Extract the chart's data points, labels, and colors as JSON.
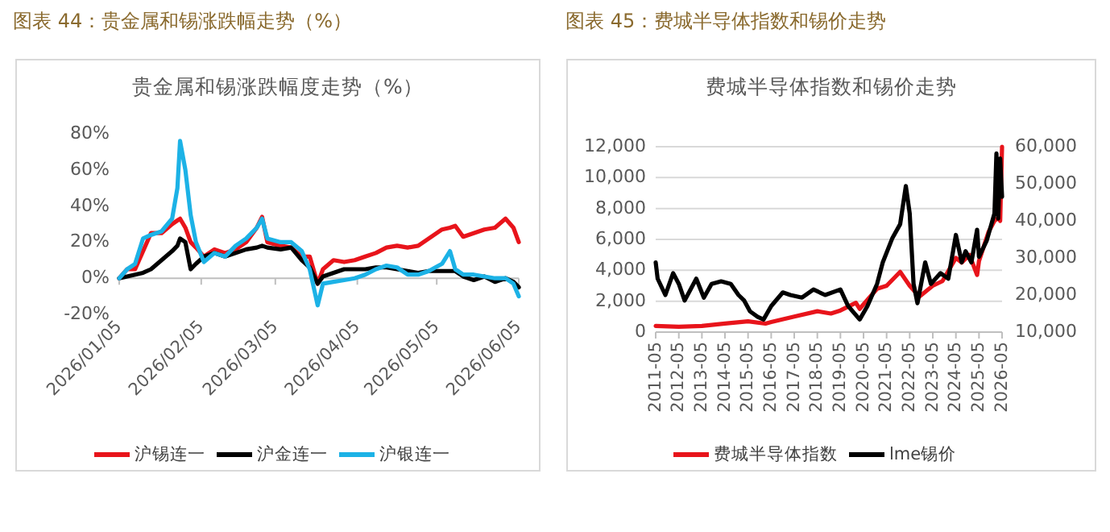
{
  "chart_data": [
    {
      "type": "line",
      "title": "图表 44：贵金属和锡涨跌幅走势（%）",
      "subtitle": "贵金属和锡涨跌幅度走势（%）",
      "x": [
        "2026-01-05",
        "2026-01-08",
        "2026-01-11",
        "2026-01-14",
        "2026-01-17",
        "2026-01-21",
        "2026-01-25",
        "2026-01-27",
        "2026-01-28",
        "2026-01-30",
        "2026-02-01",
        "2026-02-03",
        "2026-02-06",
        "2026-02-10",
        "2026-02-14",
        "2026-02-18",
        "2026-02-22",
        "2026-02-26",
        "2026-02-28",
        "2026-03-02",
        "2026-03-07",
        "2026-03-11",
        "2026-03-15",
        "2026-03-18",
        "2026-03-21",
        "2026-03-23",
        "2026-03-27",
        "2026-03-31",
        "2026-04-04",
        "2026-04-08",
        "2026-04-12",
        "2026-04-16",
        "2026-04-20",
        "2026-04-24",
        "2026-04-28",
        "2026-05-02",
        "2026-05-07",
        "2026-05-10",
        "2026-05-12",
        "2026-05-15",
        "2026-05-19",
        "2026-05-23",
        "2026-05-27",
        "2026-05-31",
        "2026-06-03",
        "2026-06-05"
      ],
      "series": [
        {
          "name": "沪锡连一",
          "color": "#e8141b",
          "values": [
            0,
            5,
            5,
            15,
            25,
            25,
            30,
            32,
            33,
            28,
            20,
            17,
            12,
            16,
            14,
            16,
            20,
            28,
            34,
            20,
            18,
            17,
            12,
            12,
            -3,
            5,
            10,
            9,
            10,
            12,
            14,
            17,
            18,
            17,
            18,
            22,
            27,
            28,
            29,
            23,
            25,
            27,
            28,
            33,
            28,
            20
          ]
        },
        {
          "name": "沪金连一",
          "color": "#000000",
          "values": [
            0,
            1,
            2,
            3,
            5,
            10,
            15,
            18,
            22,
            20,
            5,
            8,
            12,
            14,
            12,
            14,
            16,
            17,
            18,
            17,
            16,
            17,
            10,
            6,
            -3,
            1,
            3,
            5,
            5,
            5,
            6,
            6,
            5,
            4,
            3,
            4,
            4,
            4,
            4,
            1,
            -1,
            1,
            -2,
            0,
            -2,
            -5
          ]
        },
        {
          "name": "沪银连一",
          "color": "#1cb2e6",
          "values": [
            0,
            5,
            8,
            22,
            24,
            26,
            33,
            50,
            76,
            60,
            35,
            20,
            9,
            14,
            12,
            18,
            22,
            28,
            33,
            22,
            20,
            20,
            15,
            5,
            -15,
            -3,
            -2,
            -1,
            0,
            2,
            5,
            7,
            6,
            2,
            2,
            4,
            8,
            15,
            5,
            2,
            2,
            1,
            0,
            0,
            -3,
            -10
          ]
        }
      ],
      "xlim": [
        "2026-01-05",
        "2026-06-05"
      ],
      "xticks": [
        {
          "value": "2026-01-05",
          "label": "2026/01/05"
        },
        {
          "value": "2026-02-05",
          "label": "2026/02/05"
        },
        {
          "value": "2026-03-05",
          "label": "2026/03/05"
        },
        {
          "value": "2026-04-05",
          "label": "2026/04/05"
        },
        {
          "value": "2026-05-05",
          "label": "2026/05/05"
        },
        {
          "value": "2026-06-05",
          "label": "2026/06/05"
        }
      ],
      "ylim": [
        -20,
        80
      ],
      "yticks": [
        {
          "value": -20,
          "label": "-20%"
        },
        {
          "value": 0,
          "label": "0%"
        },
        {
          "value": 20,
          "label": "20%"
        },
        {
          "value": 40,
          "label": "40%"
        },
        {
          "value": 60,
          "label": "60%"
        },
        {
          "value": 80,
          "label": "80%"
        }
      ],
      "grid": false,
      "legend": "bottom"
    },
    {
      "type": "line",
      "title": "图表 45：费城半导体指数和锡价走势",
      "subtitle": "费城半导体指数和锡价走势",
      "series": [
        {
          "name": "费城半导体指数",
          "color": "#e8141b",
          "x": [
            "2011-05",
            "2012-05",
            "2013-05",
            "2014-05",
            "2015-05",
            "2016-02",
            "2016-05",
            "2017-05",
            "2018-05",
            "2018-12",
            "2019-05",
            "2020-01",
            "2020-03",
            "2020-05",
            "2020-12",
            "2021-05",
            "2021-12",
            "2022-05",
            "2022-10",
            "2023-05",
            "2023-10",
            "2024-05",
            "2024-08",
            "2024-12",
            "2025-04",
            "2025-05",
            "2025-10",
            "2026-01",
            "2026-03",
            "2026-04",
            "2026-05"
          ],
          "values": [
            400,
            350,
            400,
            550,
            700,
            550,
            650,
            1000,
            1350,
            1200,
            1400,
            1900,
            1500,
            1800,
            2800,
            3000,
            3900,
            3000,
            2300,
            3000,
            3300,
            4800,
            4500,
            5000,
            3700,
            4600,
            6500,
            7200,
            7400,
            7200,
            12000
          ]
        },
        {
          "name": "lme锡价",
          "color": "#000000",
          "axis": "y2",
          "x": [
            "2011-05",
            "2011-06",
            "2011-10",
            "2012-02",
            "2012-05",
            "2012-08",
            "2013-02",
            "2013-06",
            "2013-10",
            "2014-03",
            "2014-08",
            "2014-12",
            "2015-03",
            "2015-06",
            "2015-10",
            "2016-01",
            "2016-05",
            "2016-11",
            "2017-03",
            "2017-09",
            "2018-03",
            "2018-09",
            "2019-05",
            "2019-09",
            "2020-03",
            "2020-07",
            "2020-12",
            "2021-03",
            "2021-08",
            "2021-12",
            "2022-03",
            "2022-05",
            "2022-07",
            "2022-09",
            "2023-01",
            "2023-04",
            "2023-09",
            "2024-01",
            "2024-05",
            "2024-08",
            "2024-10",
            "2025-01",
            "2025-04",
            "2025-05",
            "2025-09",
            "2026-01",
            "2026-02",
            "2026-03",
            "2026-04",
            "2026-05"
          ],
          "values": [
            28800,
            24400,
            20000,
            25900,
            23000,
            18500,
            24400,
            19300,
            23000,
            23700,
            23000,
            20000,
            18500,
            15600,
            14100,
            13400,
            17000,
            20700,
            20000,
            19300,
            21500,
            20000,
            21500,
            17000,
            13400,
            17000,
            23000,
            28800,
            35400,
            39100,
            49400,
            42000,
            23000,
            17800,
            28800,
            23000,
            25900,
            24400,
            36200,
            28800,
            31800,
            28800,
            37600,
            30300,
            34700,
            42000,
            58200,
            40600,
            56800,
            46500
          ]
        }
      ],
      "xlim": [
        "2011-05",
        "2026-05"
      ],
      "xticks": [
        {
          "value": "2011-05",
          "label": "2011-05"
        },
        {
          "value": "2012-05",
          "label": "2012-05"
        },
        {
          "value": "2013-05",
          "label": "2013-05"
        },
        {
          "value": "2014-05",
          "label": "2014-05"
        },
        {
          "value": "2015-05",
          "label": "2015-05"
        },
        {
          "value": "2016-05",
          "label": "2016-05"
        },
        {
          "value": "2017-05",
          "label": "2017-05"
        },
        {
          "value": "2018-05",
          "label": "2018-05"
        },
        {
          "value": "2019-05",
          "label": "2019-05"
        },
        {
          "value": "2020-05",
          "label": "2020-05"
        },
        {
          "value": "2021-05",
          "label": "2021-05"
        },
        {
          "value": "2022-05",
          "label": "2022-05"
        },
        {
          "value": "2023-05",
          "label": "2023-05"
        },
        {
          "value": "2024-05",
          "label": "2024-05"
        },
        {
          "value": "2025-05",
          "label": "2025-05"
        },
        {
          "value": "2026-05",
          "label": "2026-05"
        }
      ],
      "ylim": [
        0,
        12000
      ],
      "yticks": [
        {
          "value": 0,
          "label": "0"
        },
        {
          "value": 2000,
          "label": "2,000"
        },
        {
          "value": 4000,
          "label": "4,000"
        },
        {
          "value": 6000,
          "label": "6,000"
        },
        {
          "value": 8000,
          "label": "8,000"
        },
        {
          "value": 10000,
          "label": "10,000"
        },
        {
          "value": 12000,
          "label": "12,000"
        }
      ],
      "y2lim": [
        10000,
        60000
      ],
      "y2ticks": [
        {
          "value": 10000,
          "label": "10,000"
        },
        {
          "value": 20000,
          "label": "20,000"
        },
        {
          "value": 30000,
          "label": "30,000"
        },
        {
          "value": 40000,
          "label": "40,000"
        },
        {
          "value": 50000,
          "label": "50,000"
        },
        {
          "value": 60000,
          "label": "60,000"
        }
      ],
      "grid": "y",
      "legend": "bottom"
    }
  ]
}
